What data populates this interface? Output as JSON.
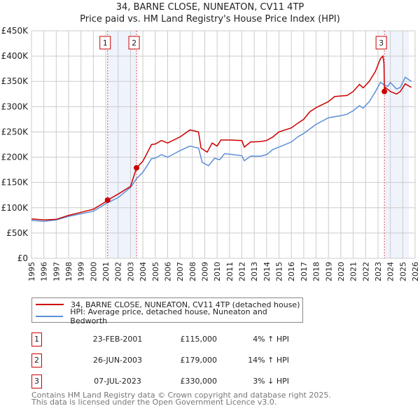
{
  "title": "34, BARNE CLOSE, NUNEATON, CV11 4TP",
  "subtitle": "Price paid vs. HM Land Registry's House Price Index (HPI)",
  "colors": {
    "property": "#cc0000",
    "hpi": "#5b8fd6",
    "shade": "#eef3fc"
  },
  "legend": {
    "property": "34, BARNE CLOSE, NUNEATON, CV11 4TP (detached house)",
    "hpi": "HPI: Average price, detached house, Nuneaton and Bedworth"
  },
  "transactions": [
    {
      "num": "1",
      "date": "23-FEB-2001",
      "price": "£115,000",
      "hpi": "4% ↑ HPI"
    },
    {
      "num": "2",
      "date": "26-JUN-2003",
      "price": "£179,000",
      "hpi": "14% ↑ HPI"
    },
    {
      "num": "3",
      "date": "07-JUL-2023",
      "price": "£330,000",
      "hpi": "3% ↓ HPI"
    }
  ],
  "footer": {
    "line1": "Contains HM Land Registry data © Crown copyright and database right 2025.",
    "line2": "This data is licensed under the Open Government Licence v3.0."
  },
  "chart_data": {
    "type": "line",
    "xlim": [
      1995,
      2026
    ],
    "ylim": [
      0,
      450000
    ],
    "yticks": [
      0,
      50000,
      100000,
      150000,
      200000,
      250000,
      300000,
      350000,
      400000,
      450000
    ],
    "ytick_labels": [
      "£0",
      "£50K",
      "£100K",
      "£150K",
      "£200K",
      "£250K",
      "£300K",
      "£350K",
      "£400K",
      "£450K"
    ],
    "xticks": [
      "1995",
      "1996",
      "1997",
      "1998",
      "1999",
      "2000",
      "2001",
      "2002",
      "2003",
      "2004",
      "2005",
      "2006",
      "2007",
      "2008",
      "2009",
      "2010",
      "2011",
      "2012",
      "2013",
      "2014",
      "2015",
      "2016",
      "2017",
      "2018",
      "2019",
      "2020",
      "2021",
      "2022",
      "2023",
      "2024",
      "2025",
      "2026"
    ],
    "grid": true,
    "shaded_ranges": [
      [
        2001.15,
        2003.49
      ],
      [
        2023.52,
        2025.5
      ]
    ],
    "forecast_from": 2025.5,
    "sales": [
      {
        "label": "1",
        "x": 2001.15,
        "y": 115000
      },
      {
        "label": "2",
        "x": 2003.49,
        "y": 179000
      },
      {
        "label": "3",
        "x": 2023.52,
        "y": 330000
      }
    ],
    "series": [
      {
        "name": "34, BARNE CLOSE, NUNEATON, CV11 4TP (detached house)",
        "color": "#cc0000",
        "x": [
          1995,
          1996,
          1997,
          1998,
          1999,
          2000,
          2001,
          2001.15,
          2002,
          2003,
          2003.49,
          2004,
          2004.7,
          2005,
          2005.5,
          2006,
          2007,
          2007.8,
          2008.5,
          2008.7,
          2009.2,
          2009.6,
          2010,
          2010.3,
          2011,
          2012,
          2012.2,
          2012.7,
          2013.5,
          2014,
          2014.5,
          2015,
          2016,
          2016.5,
          2017,
          2017.5,
          2018,
          2019,
          2019.5,
          2020.5,
          2021,
          2021.5,
          2021.8,
          2022.3,
          2022.8,
          2023.2,
          2023.4,
          2023.48,
          2023.52,
          2023.6,
          2024,
          2024.5,
          2024.8,
          2025.2,
          2025.7
        ],
        "y": [
          78000,
          76000,
          77000,
          85000,
          91000,
          97000,
          112000,
          115000,
          127000,
          142000,
          179000,
          192000,
          225000,
          226000,
          233000,
          228000,
          240000,
          254000,
          250000,
          218000,
          210000,
          228000,
          222000,
          234000,
          234000,
          233000,
          220000,
          230000,
          231000,
          233000,
          240000,
          250000,
          258000,
          267000,
          275000,
          290000,
          298000,
          310000,
          320000,
          322000,
          330000,
          344000,
          337000,
          350000,
          370000,
          395000,
          400000,
          385000,
          330000,
          338000,
          330000,
          325000,
          330000,
          345000,
          338000
        ]
      },
      {
        "name": "HPI: Average price, detached house, Nuneaton and Bedworth",
        "color": "#5b8fd6",
        "x": [
          1995,
          1996,
          1997,
          1998,
          1999,
          2000,
          2001,
          2002,
          2003,
          2003.5,
          2004,
          2004.7,
          2005,
          2005.5,
          2006,
          2007,
          2007.8,
          2008.5,
          2008.8,
          2009.3,
          2009.8,
          2010.2,
          2010.6,
          2011,
          2012,
          2012.2,
          2012.7,
          2013.5,
          2014,
          2014.5,
          2015,
          2016,
          2016.5,
          2017,
          2017.5,
          2018,
          2019,
          2020,
          2020.5,
          2021,
          2021.5,
          2021.8,
          2022.3,
          2022.8,
          2023.2,
          2023.5,
          2023.8,
          2024,
          2024.5,
          2024.8,
          2025.2,
          2025.7
        ],
        "y": [
          75000,
          73000,
          76000,
          83000,
          88000,
          93000,
          108000,
          120000,
          140000,
          158000,
          170000,
          197000,
          198000,
          205000,
          200000,
          213000,
          222000,
          218000,
          190000,
          183000,
          198000,
          195000,
          207000,
          206000,
          203000,
          193000,
          202000,
          202000,
          205000,
          215000,
          220000,
          230000,
          240000,
          247000,
          256000,
          265000,
          278000,
          282000,
          285000,
          292000,
          302000,
          297000,
          310000,
          330000,
          348000,
          343000,
          340000,
          348000,
          335000,
          338000,
          358000,
          350000
        ]
      }
    ]
  }
}
